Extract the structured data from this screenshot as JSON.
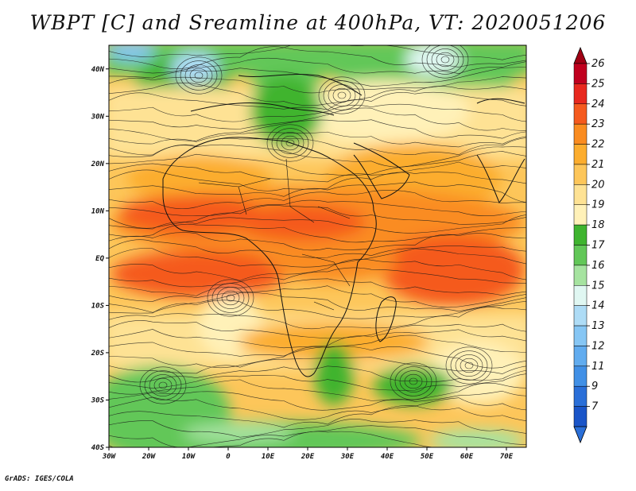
{
  "map": {
    "title": "WBPT [C] and Sreamline at 400hPa, VT: 2020051206",
    "credit": "GrADS: IGES/COLA",
    "lon_labels": [
      "30W",
      "20W",
      "10W",
      "0",
      "10E",
      "20E",
      "30E",
      "40E",
      "50E",
      "60E",
      "70E"
    ],
    "lat_labels": [
      "40N",
      "30N",
      "20N",
      "10N",
      "EQ",
      "10S",
      "20S",
      "30S",
      "40S"
    ],
    "colorbar_labels": [
      "26",
      "25",
      "24",
      "23",
      "22",
      "21",
      "20",
      "19",
      "18",
      "17",
      "16",
      "15",
      "14",
      "13",
      "12",
      "11",
      "9",
      "7"
    ],
    "colorbar_colors": [
      "#c0001e",
      "#e8281e",
      "#f55a1e",
      "#fa8c20",
      "#fcad2e",
      "#fdc65a",
      "#fee294",
      "#fff1b8",
      "#3fb42f",
      "#62c758",
      "#a6e3a0",
      "#e0f7f2",
      "#aedcf6",
      "#86c6f4",
      "#61acef",
      "#4190e6",
      "#2a6fd8",
      "#1a55c8"
    ],
    "arrow_up_color": "#a00014",
    "arrow_down_color": "#2a6fd8",
    "extent": {
      "lon_min": -30,
      "lon_max": 75,
      "lat_min": -40,
      "lat_max": 45
    }
  }
}
